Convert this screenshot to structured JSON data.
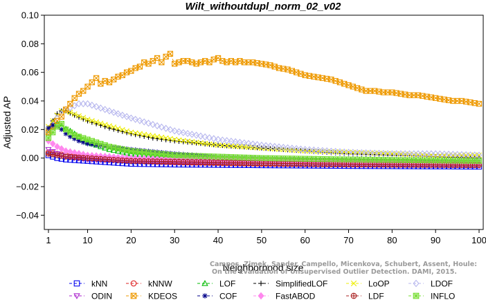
{
  "chart_data": {
    "type": "line",
    "title": "Wilt_withoutdupl_norm_02_v02",
    "xlabel": "Neighborhood size",
    "ylabel": "Adjusted AP",
    "xlim": [
      1,
      100
    ],
    "ylim": [
      -0.05,
      0.1
    ],
    "x_ticks": [
      1,
      10,
      20,
      30,
      40,
      50,
      60,
      70,
      80,
      90,
      100
    ],
    "y_ticks": [
      -0.04,
      -0.02,
      0.0,
      0.02,
      0.04,
      0.06,
      0.08,
      0.1
    ],
    "x_tick_labels": [
      "1",
      "10",
      "20",
      "30",
      "40",
      "50",
      "60",
      "70",
      "80",
      "90",
      "100"
    ],
    "y_tick_labels": [
      "−0.04",
      "−0.02",
      "0.00",
      "0.02",
      "0.04",
      "0.06",
      "0.08",
      "0.10"
    ],
    "grid": false,
    "legend_position": "bottom",
    "credit_lines": [
      "Campos, Zimek, Sander, Campello, Micenkova, Schubert, Assent, Houle:",
      "On the Evaluation of Unsupervised Outlier Detection. DAMI, 2015."
    ],
    "series": [
      {
        "name": "kNN",
        "color": "#0000ee",
        "marker": "square",
        "points": [
          [
            1,
            0.002
          ],
          [
            3,
            0.0
          ],
          [
            5,
            -0.001
          ],
          [
            10,
            -0.002
          ],
          [
            20,
            -0.004
          ],
          [
            30,
            -0.0045
          ],
          [
            50,
            -0.005
          ],
          [
            70,
            -0.0055
          ],
          [
            100,
            -0.006
          ]
        ]
      },
      {
        "name": "kNNW",
        "color": "#dd2222",
        "marker": "circle",
        "points": [
          [
            1,
            0.004
          ],
          [
            3,
            0.003
          ],
          [
            5,
            0.002
          ],
          [
            10,
            0.0
          ],
          [
            20,
            -0.002
          ],
          [
            30,
            -0.003
          ],
          [
            50,
            -0.004
          ],
          [
            70,
            -0.0045
          ],
          [
            100,
            -0.005
          ]
        ]
      },
      {
        "name": "LOF",
        "color": "#00bb00",
        "marker": "triangle",
        "points": [
          [
            1,
            0.018
          ],
          [
            2,
            0.022
          ],
          [
            3,
            0.024
          ],
          [
            4,
            0.022
          ],
          [
            6,
            0.019
          ],
          [
            8,
            0.015
          ],
          [
            10,
            0.011
          ],
          [
            15,
            0.006
          ],
          [
            20,
            0.003
          ],
          [
            30,
            0.0
          ],
          [
            40,
            -0.001
          ],
          [
            60,
            -0.002
          ],
          [
            100,
            -0.004
          ]
        ]
      },
      {
        "name": "SimplifiedLOF",
        "color": "#000000",
        "marker": "plus",
        "points": [
          [
            1,
            0.021
          ],
          [
            2,
            0.026
          ],
          [
            3,
            0.031
          ],
          [
            4,
            0.033
          ],
          [
            5,
            0.033
          ],
          [
            7,
            0.03
          ],
          [
            10,
            0.026
          ],
          [
            15,
            0.021
          ],
          [
            20,
            0.017
          ],
          [
            25,
            0.014
          ],
          [
            30,
            0.012
          ],
          [
            40,
            0.009
          ],
          [
            50,
            0.007
          ],
          [
            60,
            0.005
          ],
          [
            70,
            0.003
          ],
          [
            80,
            0.002
          ],
          [
            90,
            0.001
          ],
          [
            100,
            0.0
          ]
        ]
      },
      {
        "name": "LoOP",
        "color": "#eeee00",
        "marker": "x",
        "points": [
          [
            1,
            0.022
          ],
          [
            2,
            0.026
          ],
          [
            3,
            0.03
          ],
          [
            4,
            0.033
          ],
          [
            6,
            0.032
          ],
          [
            10,
            0.027
          ],
          [
            20,
            0.018
          ],
          [
            30,
            0.013
          ],
          [
            40,
            0.009
          ],
          [
            50,
            0.007
          ],
          [
            60,
            0.005
          ],
          [
            70,
            0.004
          ],
          [
            80,
            0.003
          ],
          [
            90,
            0.002
          ],
          [
            100,
            0.002
          ]
        ]
      },
      {
        "name": "LDOF",
        "color": "#b7b7ee",
        "marker": "diamond",
        "points": [
          [
            1,
            0.018
          ],
          [
            3,
            0.028
          ],
          [
            5,
            0.034
          ],
          [
            8,
            0.038
          ],
          [
            10,
            0.038
          ],
          [
            15,
            0.033
          ],
          [
            20,
            0.028
          ],
          [
            30,
            0.019
          ],
          [
            40,
            0.013
          ],
          [
            50,
            0.009
          ],
          [
            60,
            0.006
          ],
          [
            70,
            0.004
          ],
          [
            80,
            0.003
          ],
          [
            90,
            0.003
          ],
          [
            100,
            0.002
          ]
        ]
      },
      {
        "name": "ODIN",
        "color": "#aa22cc",
        "marker": "triangle-down",
        "points": [
          [
            1,
            0.006
          ],
          [
            3,
            0.003
          ],
          [
            5,
            0.001
          ],
          [
            10,
            -0.001
          ],
          [
            20,
            -0.002
          ],
          [
            30,
            -0.003
          ],
          [
            50,
            -0.003
          ],
          [
            70,
            -0.004
          ],
          [
            100,
            -0.005
          ]
        ]
      },
      {
        "name": "KDEOS",
        "color": "#ee9900",
        "marker": "boxed-x",
        "points": [
          [
            1,
            0.018
          ],
          [
            2,
            0.022
          ],
          [
            3,
            0.026
          ],
          [
            4,
            0.029
          ],
          [
            5,
            0.034
          ],
          [
            6,
            0.038
          ],
          [
            7,
            0.042
          ],
          [
            8,
            0.045
          ],
          [
            9,
            0.047
          ],
          [
            10,
            0.05
          ],
          [
            11,
            0.053
          ],
          [
            12,
            0.056
          ],
          [
            13,
            0.052
          ],
          [
            14,
            0.054
          ],
          [
            15,
            0.053
          ],
          [
            16,
            0.055
          ],
          [
            17,
            0.057
          ],
          [
            18,
            0.058
          ],
          [
            19,
            0.06
          ],
          [
            20,
            0.061
          ],
          [
            21,
            0.063
          ],
          [
            22,
            0.064
          ],
          [
            23,
            0.067
          ],
          [
            24,
            0.066
          ],
          [
            25,
            0.068
          ],
          [
            26,
            0.07
          ],
          [
            27,
            0.067
          ],
          [
            28,
            0.071
          ],
          [
            29,
            0.073
          ],
          [
            30,
            0.066
          ],
          [
            31,
            0.067
          ],
          [
            32,
            0.068
          ],
          [
            33,
            0.068
          ],
          [
            34,
            0.067
          ],
          [
            35,
            0.066
          ],
          [
            36,
            0.067
          ],
          [
            37,
            0.068
          ],
          [
            38,
            0.067
          ],
          [
            39,
            0.069
          ],
          [
            40,
            0.07
          ],
          [
            41,
            0.068
          ],
          [
            42,
            0.067
          ],
          [
            43,
            0.068
          ],
          [
            44,
            0.067
          ],
          [
            45,
            0.068
          ],
          [
            46,
            0.067
          ],
          [
            48,
            0.067
          ],
          [
            50,
            0.066
          ],
          [
            52,
            0.065
          ],
          [
            54,
            0.063
          ],
          [
            56,
            0.062
          ],
          [
            58,
            0.06
          ],
          [
            60,
            0.058
          ],
          [
            62,
            0.057
          ],
          [
            64,
            0.056
          ],
          [
            66,
            0.055
          ],
          [
            68,
            0.053
          ],
          [
            70,
            0.051
          ],
          [
            72,
            0.049
          ],
          [
            74,
            0.047
          ],
          [
            76,
            0.047
          ],
          [
            78,
            0.046
          ],
          [
            80,
            0.046
          ],
          [
            82,
            0.045
          ],
          [
            84,
            0.044
          ],
          [
            86,
            0.044
          ],
          [
            88,
            0.043
          ],
          [
            90,
            0.042
          ],
          [
            92,
            0.041
          ],
          [
            94,
            0.04
          ],
          [
            96,
            0.04
          ],
          [
            98,
            0.039
          ],
          [
            100,
            0.038
          ]
        ]
      },
      {
        "name": "COF",
        "color": "#000088",
        "marker": "asterisk",
        "points": [
          [
            1,
            0.021
          ],
          [
            2,
            0.023
          ],
          [
            3,
            0.022
          ],
          [
            4,
            0.02
          ],
          [
            5,
            0.017
          ],
          [
            6,
            0.015
          ],
          [
            8,
            0.012
          ],
          [
            10,
            0.01
          ],
          [
            15,
            0.008
          ],
          [
            20,
            0.006
          ],
          [
            30,
            0.003
          ],
          [
            40,
            0.001
          ],
          [
            50,
            0.0
          ],
          [
            60,
            -0.001
          ],
          [
            80,
            -0.002
          ],
          [
            100,
            -0.002
          ]
        ]
      },
      {
        "name": "FastABOD",
        "color": "#ff88ee",
        "marker": "diamond-filled",
        "points": [
          [
            1,
            0.012
          ],
          [
            3,
            0.008
          ],
          [
            5,
            0.005
          ],
          [
            10,
            0.002
          ],
          [
            20,
            0.0
          ],
          [
            30,
            -0.001
          ],
          [
            50,
            -0.002
          ],
          [
            70,
            -0.003
          ],
          [
            100,
            -0.004
          ]
        ]
      },
      {
        "name": "LDF",
        "color": "#aa2222",
        "marker": "circle-plus",
        "points": [
          [
            1,
            0.003
          ],
          [
            3,
            0.002
          ],
          [
            5,
            0.001
          ],
          [
            10,
            0.0
          ],
          [
            20,
            -0.002
          ],
          [
            40,
            -0.003
          ],
          [
            60,
            -0.004
          ],
          [
            100,
            -0.005
          ]
        ]
      },
      {
        "name": "INFLO",
        "color": "#77dd33",
        "marker": "boxed-star",
        "points": [
          [
            1,
            0.014
          ],
          [
            2,
            0.018
          ],
          [
            3,
            0.022
          ],
          [
            4,
            0.024
          ],
          [
            5,
            0.02
          ],
          [
            7,
            0.016
          ],
          [
            10,
            0.013
          ],
          [
            15,
            0.008
          ],
          [
            20,
            0.005
          ],
          [
            30,
            0.002
          ],
          [
            50,
            0.0
          ],
          [
            70,
            -0.001
          ],
          [
            100,
            -0.002
          ]
        ]
      }
    ]
  }
}
